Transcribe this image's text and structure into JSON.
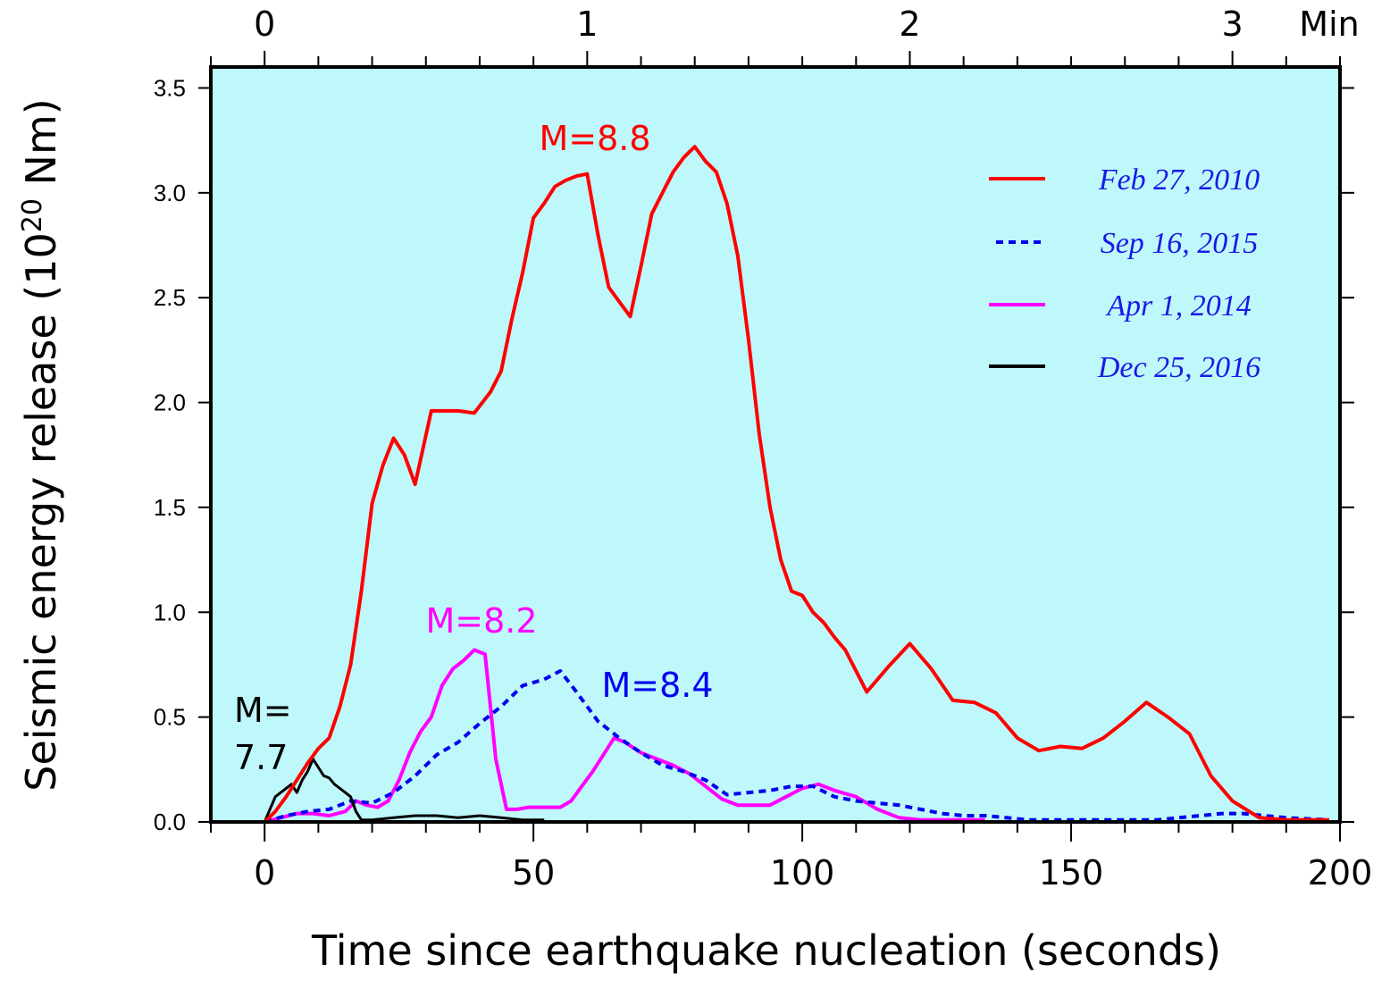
{
  "chart_data": {
    "type": "line",
    "title": "",
    "xlabel": "Time since earthquake nucleation (seconds)",
    "ylabel": "Seismic energy release (10",
    "ylabel_superscript": "20",
    "ylabel_suffix": " Nm)",
    "xlim": [
      -10,
      200
    ],
    "ylim": [
      0,
      3.6
    ],
    "grid": false,
    "background": "#bff8fb",
    "x_ticks": [
      0,
      50,
      100,
      150,
      200
    ],
    "x_tick_labels": [
      "0",
      "50",
      "100",
      "150",
      "200"
    ],
    "y_ticks": [
      0,
      0.5,
      1.0,
      1.5,
      2.0,
      2.5,
      3.0,
      3.5
    ],
    "y_tick_labels": [
      "0.0",
      "0.5",
      "1.0",
      "1.5",
      "2.0",
      "2.5",
      "3.0",
      "3.5"
    ],
    "top_axis": {
      "unit_label": "Min",
      "ticks_seconds": [
        0,
        60,
        120,
        180
      ],
      "tick_labels": [
        "0",
        "1",
        "2",
        "3"
      ]
    },
    "legend_position": "top-right",
    "series": [
      {
        "name": "Feb 27, 2010",
        "color": "#ff0000",
        "style": "solid",
        "annotation": "M=8.8",
        "x": [
          0,
          2,
          4,
          6,
          8,
          10,
          12,
          14,
          16,
          18,
          20,
          22,
          24,
          26,
          28,
          31,
          36,
          39,
          42,
          44,
          46,
          48,
          50,
          52,
          54,
          56,
          58,
          60,
          62,
          64,
          66,
          68,
          70,
          72,
          74,
          76,
          78,
          80,
          82,
          84,
          86,
          88,
          90,
          92,
          94,
          96,
          98,
          100,
          102,
          104,
          106,
          108,
          112,
          116,
          120,
          124,
          128,
          132,
          136,
          140,
          144,
          148,
          152,
          156,
          160,
          164,
          168,
          172,
          176,
          180,
          185,
          190,
          198
        ],
        "values": [
          0.0,
          0.05,
          0.12,
          0.2,
          0.28,
          0.35,
          0.4,
          0.55,
          0.75,
          1.1,
          1.52,
          1.7,
          1.83,
          1.75,
          1.61,
          1.96,
          1.96,
          1.95,
          2.05,
          2.15,
          2.4,
          2.62,
          2.88,
          2.95,
          3.03,
          3.06,
          3.08,
          3.09,
          2.8,
          2.55,
          2.48,
          2.41,
          2.65,
          2.9,
          3.0,
          3.1,
          3.17,
          3.22,
          3.15,
          3.1,
          2.95,
          2.7,
          2.3,
          1.85,
          1.5,
          1.25,
          1.1,
          1.08,
          1.0,
          0.95,
          0.88,
          0.82,
          0.62,
          0.74,
          0.85,
          0.73,
          0.58,
          0.57,
          0.52,
          0.4,
          0.34,
          0.36,
          0.35,
          0.4,
          0.48,
          0.57,
          0.5,
          0.42,
          0.22,
          0.1,
          0.02,
          0.01,
          0.01
        ]
      },
      {
        "name": "Sep 16, 2015",
        "color": "#0000ee",
        "style": "dashed",
        "annotation": "M=8.4",
        "x": [
          0,
          4,
          8,
          12,
          16,
          20,
          24,
          28,
          32,
          36,
          40,
          44,
          48,
          52,
          55,
          58,
          62,
          66,
          70,
          74,
          78,
          82,
          86,
          90,
          94,
          98,
          102,
          106,
          110,
          114,
          118,
          122,
          126,
          130,
          134,
          138,
          142,
          146,
          150,
          154,
          158,
          162,
          166,
          170,
          174,
          178,
          182,
          186,
          190,
          198
        ],
        "values": [
          0.0,
          0.03,
          0.05,
          0.06,
          0.1,
          0.09,
          0.14,
          0.22,
          0.32,
          0.38,
          0.47,
          0.55,
          0.65,
          0.68,
          0.72,
          0.62,
          0.48,
          0.4,
          0.33,
          0.27,
          0.24,
          0.2,
          0.13,
          0.14,
          0.15,
          0.17,
          0.17,
          0.12,
          0.1,
          0.09,
          0.08,
          0.06,
          0.04,
          0.03,
          0.03,
          0.02,
          0.01,
          0.01,
          0.01,
          0.01,
          0.01,
          0.01,
          0.01,
          0.02,
          0.03,
          0.04,
          0.04,
          0.03,
          0.02,
          0.01
        ]
      },
      {
        "name": "Apr 1, 2014",
        "color": "#ff00ff",
        "style": "solid",
        "annotation": "M=8.2",
        "x": [
          0,
          3,
          6,
          9,
          12,
          15,
          17,
          19,
          21,
          23,
          25,
          27,
          29,
          31,
          33,
          35,
          37,
          39,
          41,
          43,
          45,
          47,
          49,
          51,
          53,
          55,
          57,
          59,
          61,
          63,
          65,
          67,
          70,
          73,
          76,
          79,
          82,
          85,
          88,
          91,
          94,
          97,
          100,
          103,
          106,
          110,
          114,
          118,
          122,
          126,
          130,
          134
        ],
        "values": [
          0.0,
          0.02,
          0.04,
          0.04,
          0.03,
          0.05,
          0.1,
          0.08,
          0.07,
          0.1,
          0.2,
          0.33,
          0.43,
          0.5,
          0.65,
          0.73,
          0.77,
          0.82,
          0.8,
          0.3,
          0.06,
          0.06,
          0.07,
          0.07,
          0.07,
          0.07,
          0.1,
          0.17,
          0.24,
          0.32,
          0.4,
          0.38,
          0.33,
          0.3,
          0.27,
          0.23,
          0.17,
          0.11,
          0.08,
          0.08,
          0.08,
          0.12,
          0.16,
          0.18,
          0.15,
          0.12,
          0.06,
          0.02,
          0.01,
          0.01,
          0.01,
          0.01
        ]
      },
      {
        "name": "Dec 25, 2016",
        "color": "#000000",
        "style": "solid",
        "annotation": "M=\n7.7",
        "annotation_lines": [
          "M=",
          "7.7"
        ],
        "x": [
          0,
          2,
          4,
          5,
          6,
          7,
          8,
          9,
          10,
          11,
          12,
          13,
          14,
          15,
          16,
          17,
          18,
          20,
          24,
          28,
          32,
          36,
          40,
          44,
          48,
          52
        ],
        "values": [
          0.0,
          0.12,
          0.16,
          0.18,
          0.14,
          0.2,
          0.24,
          0.3,
          0.26,
          0.22,
          0.21,
          0.18,
          0.16,
          0.14,
          0.12,
          0.05,
          0.01,
          0.01,
          0.02,
          0.03,
          0.03,
          0.02,
          0.03,
          0.02,
          0.01,
          0.01
        ]
      }
    ]
  }
}
